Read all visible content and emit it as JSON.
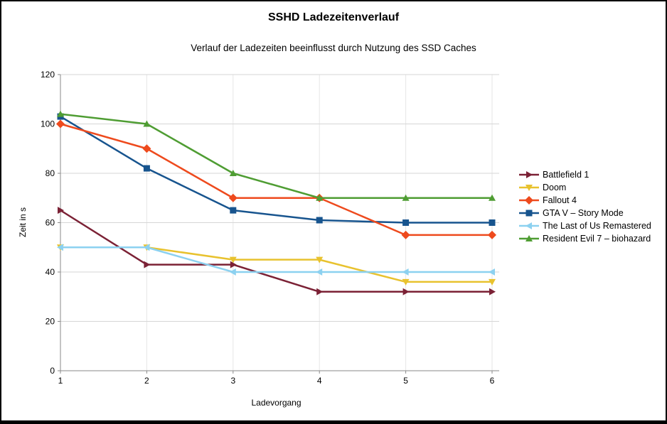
{
  "chart_data": {
    "type": "line",
    "title": "SSHD Ladezeitenverlauf",
    "subtitle": "Verlauf der Ladezeiten beeinflusst durch Nutzung des SSD Caches",
    "xlabel": "Ladevorgang",
    "ylabel": "Zeit in s",
    "x": [
      1,
      2,
      3,
      4,
      5,
      6
    ],
    "xlim": [
      1,
      6
    ],
    "ylim": [
      0,
      120
    ],
    "y_ticks": [
      0,
      20,
      40,
      60,
      80,
      100,
      120
    ],
    "grid": true,
    "legend_position": "right",
    "series": [
      {
        "name": "Battlefield 1",
        "color": "#7b2135",
        "marker": "triangle-right",
        "values": [
          65,
          43,
          43,
          32,
          32,
          32
        ]
      },
      {
        "name": "Doom",
        "color": "#e8c22e",
        "marker": "triangle-down",
        "values": [
          50,
          50,
          45,
          45,
          36,
          36
        ]
      },
      {
        "name": "Fallout 4",
        "color": "#ee4a1d",
        "marker": "diamond",
        "values": [
          100,
          90,
          70,
          70,
          55,
          55
        ]
      },
      {
        "name": "GTA V – Story Mode",
        "color": "#17548e",
        "marker": "square",
        "values": [
          103,
          82,
          65,
          61,
          60,
          60
        ]
      },
      {
        "name": "The Last of Us Remastered",
        "color": "#8cd1f0",
        "marker": "triangle-left",
        "values": [
          50,
          50,
          40,
          40,
          40,
          40
        ]
      },
      {
        "name": "Resident Evil 7 – biohazard",
        "color": "#4f9d33",
        "marker": "triangle-up",
        "values": [
          104,
          100,
          80,
          70,
          70,
          70
        ]
      }
    ]
  }
}
